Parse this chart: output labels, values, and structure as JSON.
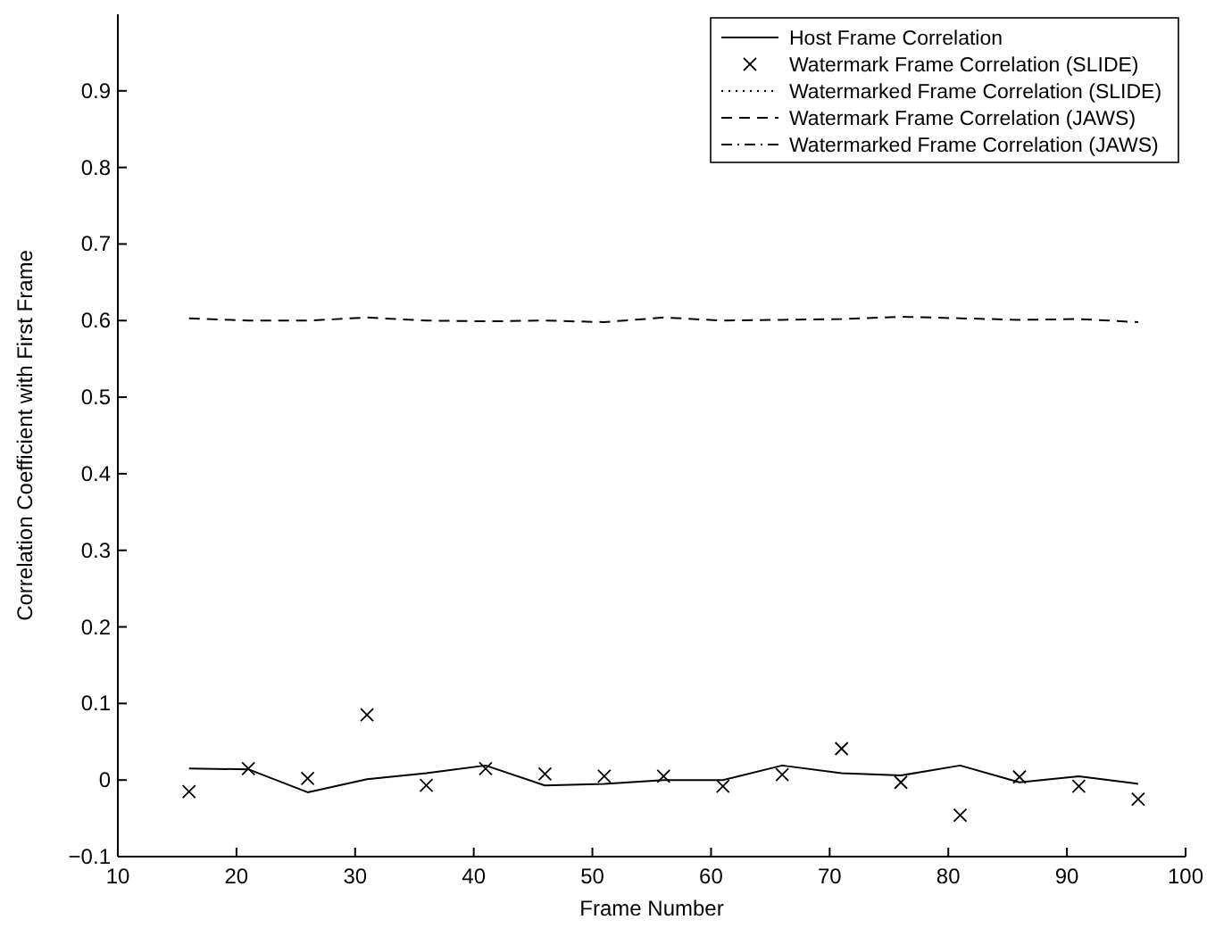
{
  "chart_data": {
    "type": "line",
    "xlabel": "Frame Number",
    "ylabel": "Correlation Coefficient with First Frame",
    "x": [
      16,
      21,
      26,
      31,
      36,
      41,
      46,
      51,
      56,
      61,
      66,
      71,
      76,
      81,
      86,
      91,
      96
    ],
    "xlim": [
      10,
      100
    ],
    "xticks": [
      10,
      20,
      30,
      40,
      50,
      60,
      70,
      80,
      90,
      100
    ],
    "ylim": [
      -0.1,
      1
    ],
    "yticks": [
      -0.1,
      0,
      0.1,
      0.2,
      0.3,
      0.4,
      0.5,
      0.6,
      0.7,
      0.8,
      0.9
    ],
    "legend": "top right",
    "grid": false,
    "series": [
      {
        "name": "Host Frame Correlation",
        "line_style": "solid",
        "color": "#000000",
        "values": [
          0.015,
          0.014,
          -0.016,
          0.001,
          0.009,
          0.019,
          -0.007,
          -0.005,
          0.0,
          0.0,
          0.019,
          0.009,
          0.006,
          0.019,
          -0.003,
          0.005,
          -0.005
        ]
      },
      {
        "name": "Watermark Frame Correlation (SLIDE)",
        "type": "scatter",
        "marker": "cross",
        "color": "#000000",
        "values": [
          -0.015,
          0.015,
          0.002,
          0.085,
          -0.007,
          0.015,
          0.008,
          0.005,
          0.005,
          -0.008,
          0.007,
          0.041,
          -0.003,
          -0.046,
          0.004,
          -0.008,
          -0.025
        ]
      },
      {
        "name": "Watermarked Frame Correlation (SLIDE)",
        "line_style": "dotted",
        "color": "#000000",
        "values": [
          null,
          null,
          null,
          null,
          null,
          null,
          null,
          null,
          null,
          null,
          null,
          null,
          null,
          null,
          null,
          null,
          null
        ]
      },
      {
        "name": "Watermark Frame Correlation (JAWS)",
        "line_style": "dashed",
        "color": "#000000",
        "values": [
          0.603,
          0.6,
          0.6,
          0.604,
          0.6,
          0.599,
          0.6,
          0.598,
          0.604,
          0.6,
          0.601,
          0.602,
          0.605,
          0.603,
          0.601,
          0.602,
          0.598
        ]
      },
      {
        "name": "Watermarked Frame Correlation (JAWS)",
        "line_style": "dashdot",
        "color": "#000000",
        "values": [
          null,
          null,
          null,
          null,
          null,
          null,
          null,
          null,
          null,
          null,
          null,
          null,
          null,
          null,
          null,
          null,
          null
        ]
      }
    ]
  }
}
